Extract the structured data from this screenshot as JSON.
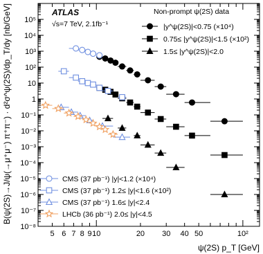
{
  "chart_data": {
    "type": "scatter",
    "xscale": "log",
    "yscale": "log",
    "xlim": [
      4,
      130
    ],
    "ylim": [
      1e-08,
      1000000.0
    ],
    "xlabel": "ψ(2S) p_T [GeV]",
    "ylabel": "B(ψ(2S)→J/ψ(→μ⁺μ⁻) π⁺π⁻) · d²σ^ψ(2S)/dp_T/dy [nb/GeV]",
    "experiment": "ATLAS",
    "subtitle": "√s=7 TeV, 2.1fb⁻¹",
    "xticks": [
      5,
      6,
      7,
      8,
      9,
      10,
      20,
      30,
      40,
      50,
      100
    ],
    "xtick_labels": [
      "5",
      "6",
      "7",
      "8",
      "9",
      "10",
      "20",
      "30",
      "40",
      "50",
      "10²"
    ],
    "yticks": [
      1e-08,
      1e-07,
      1e-06,
      1e-05,
      0.0001,
      0.001,
      0.01,
      0.1,
      1,
      10,
      100,
      1000,
      10000.0,
      100000.0
    ],
    "ytick_labels": [
      "10⁻⁸",
      "10⁻⁷",
      "10⁻⁶",
      "10⁻⁵",
      "10⁻⁴",
      "10⁻³",
      "10⁻²",
      "10⁻¹",
      "1",
      "10",
      "10²",
      "10³",
      "10⁴",
      "10⁵"
    ],
    "legend_top": {
      "title": "Non-prompt ψ(2S) data",
      "entries": [
        "|y^ψ(2S)|<0.75 (×10⁴)",
        "0.75≤ |y^ψ(2S)|<1.5 (×10²)",
        "1.5≤ |y^ψ(2S)|<2.0"
      ]
    },
    "legend_bottom": {
      "entries": [
        "CMS (37 pb⁻¹) |y|<1.2 (×10⁴)",
        "CMS (37 pb⁻¹) 1.2≤ |y|<1.6 (×10²)",
        "CMS (37 pb⁻¹) 1.6≤ |y|<2.4",
        "LHCb (36 pb⁻¹) 2.0≤ |y|<4.5"
      ]
    },
    "series": [
      {
        "name": "|y^ψ(2S)|<0.75 (×10⁴)",
        "marker": "filled-circle",
        "color": "#000000",
        "x": [
          10.5,
          11.5,
          12.5,
          13.5,
          15,
          17,
          19,
          22.5,
          27.5,
          35,
          45,
          75
        ],
        "xlo": [
          10,
          11,
          12,
          13,
          14,
          16,
          18,
          20,
          25,
          30,
          40,
          60
        ],
        "xhi": [
          11,
          12,
          13,
          14,
          16,
          18,
          20,
          25,
          30,
          40,
          60,
          100
        ],
        "y": [
          450,
          350,
          260,
          190,
          110,
          62,
          35,
          15,
          6,
          2,
          0.6,
          0.04
        ]
      },
      {
        "name": "0.75≤ |y^ψ(2S)|<1.5 (×10²)",
        "marker": "filled-square",
        "color": "#000000",
        "x": [
          10.5,
          11.5,
          12.5,
          13.5,
          15,
          17,
          19,
          22.5,
          27.5,
          35,
          45,
          75
        ],
        "xlo": [
          10,
          11,
          12,
          13,
          14,
          16,
          18,
          20,
          25,
          30,
          40,
          60
        ],
        "xhi": [
          11,
          12,
          13,
          14,
          16,
          18,
          20,
          25,
          30,
          40,
          60,
          100
        ],
        "y": [
          5,
          3.8,
          2.8,
          1.9,
          1.1,
          0.6,
          0.33,
          0.14,
          0.055,
          0.018,
          0.005,
          0.0003
        ]
      },
      {
        "name": "1.5≤ |y^ψ(2S)|<2.0",
        "marker": "filled-triangle",
        "color": "#000000",
        "x": [
          12,
          15,
          19,
          22.5,
          27.5,
          35,
          75
        ],
        "xlo": [
          11,
          14,
          18,
          20,
          25,
          30,
          60
        ],
        "xhi": [
          13,
          16,
          20,
          25,
          30,
          40,
          100
        ],
        "y": [
          0.06,
          0.015,
          0.005,
          0.0013,
          0.0004,
          5e-05,
          1e-06
        ]
      },
      {
        "name": "CMS (37 pb⁻¹) |y|<1.2 (×10⁴)",
        "marker": "open-circle",
        "color": "#6f8fe0",
        "x": [
          7.25,
          8,
          8.75,
          9.5,
          10.5
        ],
        "xlo": [
          6.5,
          7.5,
          8.5,
          9,
          10
        ],
        "xhi": [
          7.5,
          8.5,
          9,
          10,
          11
        ],
        "y": [
          1500,
          1200,
          900,
          700,
          550
        ]
      },
      {
        "name": "CMS (37 pb⁻¹) 1.2≤ |y|<1.6 (×10²)",
        "marker": "open-square",
        "color": "#6f8fe0",
        "x": [
          6,
          7.25,
          8,
          8.75,
          9.5,
          10.5,
          12,
          15
        ],
        "xlo": [
          5.5,
          6.5,
          7.5,
          8.5,
          9,
          10,
          11,
          14
        ],
        "xhi": [
          6.5,
          7.5,
          8.5,
          9,
          10,
          11,
          13,
          16
        ],
        "y": [
          55,
          22,
          13,
          10,
          8,
          5,
          3.2,
          1.3
        ]
      },
      {
        "name": "CMS (37 pb⁻¹) 1.6≤ |y|<2.4",
        "marker": "open-triangle",
        "color": "#6f8fe0",
        "x": [
          5.75,
          6.75,
          7.75,
          9,
          11,
          15
        ],
        "xlo": [
          5.5,
          6.5,
          7.5,
          8.5,
          10,
          13
        ],
        "xhi": [
          6.5,
          7.5,
          8.5,
          9.5,
          13,
          17
        ],
        "y": [
          0.3,
          0.15,
          0.09,
          0.045,
          0.02,
          0.004
        ]
      },
      {
        "name": "LHCb (36 pb⁻¹) 2.0≤ |y|<4.5",
        "marker": "open-star",
        "color": "#f0a060",
        "x": [
          4.5,
          5.5,
          6.5,
          7.5,
          8.5,
          9.5,
          10.5,
          11.5,
          13
        ],
        "xlo": [
          4,
          5,
          6,
          7,
          8,
          9,
          10,
          11,
          12
        ],
        "xhi": [
          5,
          6,
          7,
          8,
          9,
          10,
          11,
          12,
          14
        ],
        "y": [
          0.4,
          0.25,
          0.13,
          0.08,
          0.05,
          0.03,
          0.018,
          0.012,
          0.006
        ]
      }
    ]
  }
}
